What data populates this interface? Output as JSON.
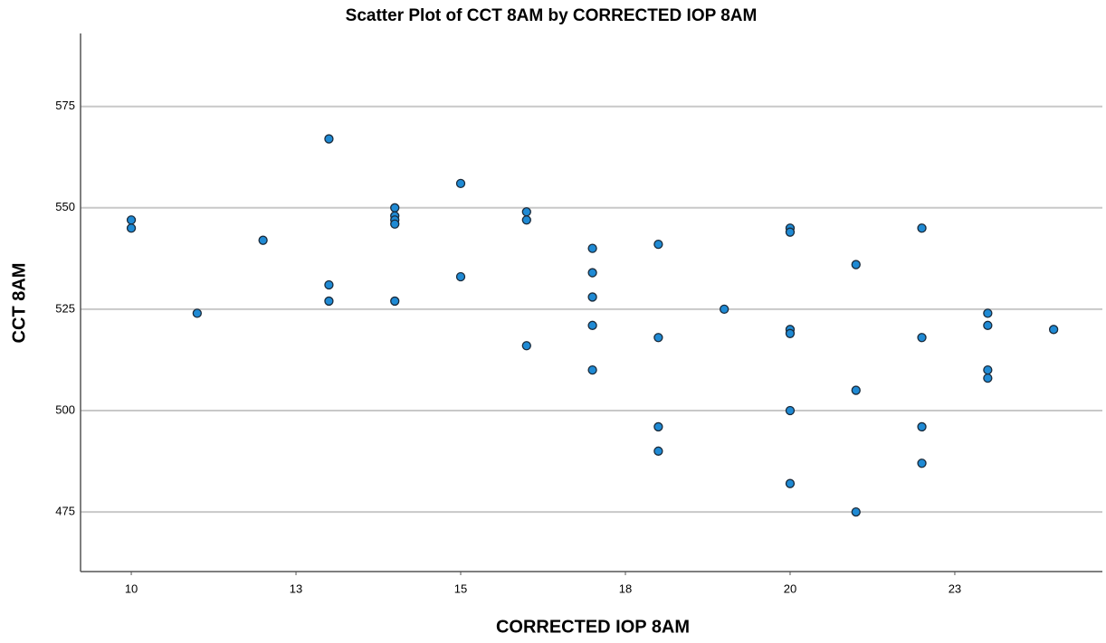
{
  "chart_data": {
    "type": "scatter",
    "title": "Scatter Plot of CCT  8AM by CORRECTED IOP  8AM",
    "x_label": "CORRECTED IOP  8AM",
    "y_label": "CCT 8AM",
    "color": "#1f8ad4",
    "edge_color": "#1a2a3a",
    "grid": true,
    "xlim": [
      9.23,
      24.74
    ],
    "ylim": [
      460.3,
      593
    ],
    "xticks": [
      10,
      {
        "value": 12.5,
        "label": "13"
      },
      15,
      {
        "value": 17.5,
        "label": "18"
      },
      20,
      {
        "value": 22.5,
        "label": "23"
      }
    ],
    "yticks": [
      475,
      500,
      525,
      550,
      575
    ],
    "x": [
      10,
      10,
      11,
      12,
      13,
      13,
      13,
      14,
      14,
      14,
      14,
      14,
      15,
      15,
      16,
      16,
      16,
      17,
      17,
      17,
      17,
      17,
      18,
      18,
      18,
      18,
      19,
      20,
      20,
      20,
      20,
      20,
      20,
      21,
      21,
      21,
      22,
      22,
      22,
      22,
      23,
      23,
      23,
      23,
      24
    ],
    "values": [
      547,
      545,
      524,
      542,
      567,
      531,
      527,
      550,
      548,
      547,
      546,
      527,
      556,
      533,
      549,
      547,
      516,
      540,
      534,
      528,
      521,
      510,
      541,
      518,
      496,
      490,
      525,
      545,
      544,
      520,
      519,
      500,
      482,
      536,
      505,
      475,
      545,
      518,
      496,
      487,
      524,
      521,
      510,
      508,
      520
    ]
  }
}
